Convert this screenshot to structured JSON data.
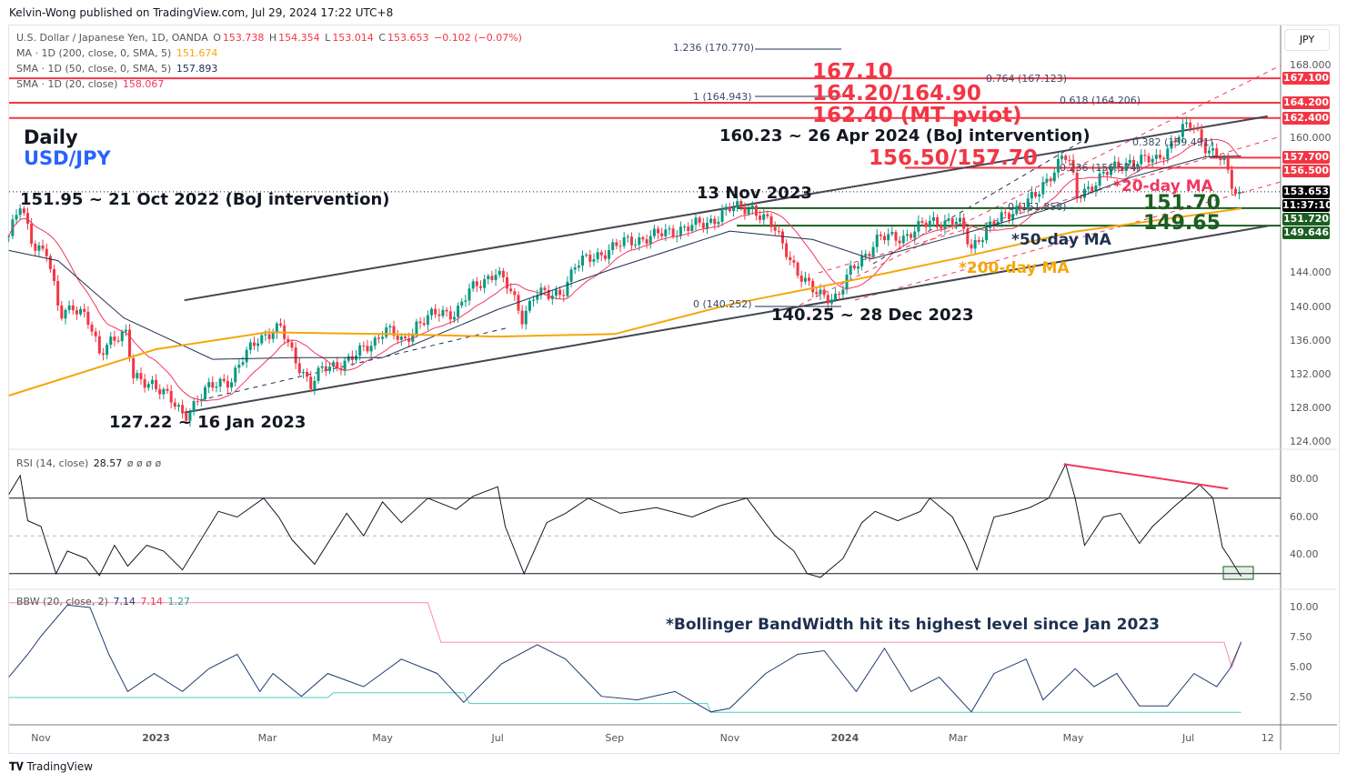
{
  "header": {
    "published": "Kelvin-Wong published on TradingView.com, Jul 29, 2024 17:22 UTC+8"
  },
  "legend": {
    "symbol": "U.S. Dollar / Japanese Yen, 1D, OANDA",
    "open_label": "O",
    "open": "153.738",
    "high_label": "H",
    "high": "154.354",
    "low_label": "L",
    "low": "153.014",
    "close_label": "C",
    "close": "153.653",
    "change": "−0.102 (−0.07%)",
    "ma200_label": "MA · 1D (200, close, 0, SMA, 5)",
    "ma200_value": "151.674",
    "sma50_label": "SMA · 1D (50, close, 0, SMA, 5)",
    "sma50_value": "157.893",
    "sma20_label": "SMA · 1D (20, close)",
    "sma20_value": "158.067",
    "rsi_label": "RSI (14, close)",
    "rsi_value": "28.57",
    "rsi_extra": "ø ø ø ø",
    "bbw_label": "BBW (20, close, 2)",
    "bbw_value1": "7.14",
    "bbw_value2": "7.14",
    "bbw_value3": "1.27"
  },
  "colors": {
    "up": "#089981",
    "down": "#f23645",
    "ma20": "#f23660",
    "ma50": "#1e3050",
    "ma200": "#f5a70a",
    "resistance": "#f23645",
    "support": "#1b5e20",
    "bbw": "#1e3a6e",
    "bbw_high": "#f48fb1",
    "bbw_low": "#4dd0c0"
  },
  "annotations": {
    "daily": "Daily",
    "pair": "USD/JPY",
    "oct2022": "151.95 ~ 21 Oct 2022 (BoJ intervention)",
    "jan2023": "127.22 ~ 16 Jan 2023",
    "nov2023": "13 Nov 2023",
    "apr2024": "160.23 ~ 26 Apr 2024 (BoJ intervention)",
    "dec2023": "140.25 ~ 28 Dec 2023",
    "r1": "167.10",
    "r2": "164.20/164.90",
    "r3": "162.40 (MT pviot)",
    "r4": "156.50/157.70",
    "ma20": "*20-day MA",
    "s1": "151.70",
    "s2": "149.65",
    "ma50": "*50-day MA",
    "ma200": "*200-day MA",
    "bbw_note": "*Bollinger BandWidth hit its highest level since Jan 2023"
  },
  "fib_labels": {
    "f1236": "1.236 (170.770)",
    "f1": "1 (164.943)",
    "f0764": "0.764 (167.123)",
    "f0618": "0.618 (164.206)",
    "f0382": "0.382 (159.491)",
    "f0236": "0.236 (156.574)",
    "f0a": "0 (151.858)",
    "f0b": "0 (140.252)"
  },
  "price_axis": {
    "currency": "JPY",
    "ticks": [
      {
        "v": 168,
        "label": "168.000"
      },
      {
        "v": 160,
        "label": "160.000"
      },
      {
        "v": 144,
        "label": "144.000"
      },
      {
        "v": 140,
        "label": "140.000"
      },
      {
        "v": 136,
        "label": "136.000"
      },
      {
        "v": 132,
        "label": "132.000"
      },
      {
        "v": 128,
        "label": "128.000"
      },
      {
        "v": 124,
        "label": "124.000"
      }
    ],
    "badges": [
      {
        "v": 167.1,
        "text": "167.100",
        "color": "#f23645"
      },
      {
        "v": 164.2,
        "text": "164.200",
        "color": "#f23645"
      },
      {
        "v": 162.4,
        "text": "162.400",
        "color": "#f23645"
      },
      {
        "v": 157.7,
        "text": "157.700",
        "color": "#f23645"
      },
      {
        "v": 156.5,
        "text": "156.500",
        "color": "#f23645"
      },
      {
        "v": 153.653,
        "text": "153.653",
        "color": "#000000"
      },
      {
        "v": 152.2,
        "text": "11:37:10",
        "color": "#000000"
      },
      {
        "v": 151.72,
        "text": "151.720",
        "color": "#1b5e20"
      },
      {
        "v": 149.646,
        "text": "149.646",
        "color": "#1b5e20"
      }
    ]
  },
  "rsi_axis": [
    {
      "v": 80,
      "label": "80.00"
    },
    {
      "v": 60,
      "label": "60.00"
    },
    {
      "v": 40,
      "label": "40.00"
    }
  ],
  "bbw_axis": [
    {
      "v": 10,
      "label": "10.00"
    },
    {
      "v": 7.5,
      "label": "7.50"
    },
    {
      "v": 5,
      "label": "5.00"
    },
    {
      "v": 2.5,
      "label": "2.50"
    }
  ],
  "time_axis": [
    {
      "d": "2022-11-01",
      "label": "Nov"
    },
    {
      "d": "2023-01-01",
      "label": "2023"
    },
    {
      "d": "2023-03-01",
      "label": "Mar"
    },
    {
      "d": "2023-05-01",
      "label": "May"
    },
    {
      "d": "2023-07-01",
      "label": "Jul"
    },
    {
      "d": "2023-09-01",
      "label": "Sep"
    },
    {
      "d": "2023-11-01",
      "label": "Nov"
    },
    {
      "d": "2024-01-01",
      "label": "2024"
    },
    {
      "d": "2024-03-01",
      "label": "Mar"
    },
    {
      "d": "2024-05-01",
      "label": "May"
    },
    {
      "d": "2024-07-01",
      "label": "Jul"
    },
    {
      "d": "2024-08-12",
      "label": "12"
    }
  ],
  "footer": {
    "brand": "TradingView"
  },
  "chart_data": {
    "type": "candlestick",
    "title": "U.S. Dollar / Japanese Yen, 1D, OANDA",
    "ylim": [
      124,
      170
    ],
    "xlim": [
      "2022-10-15",
      "2024-08-12"
    ],
    "closes": [
      [
        "2022-10-15",
        148.4
      ],
      [
        "2022-10-21",
        151.9
      ],
      [
        "2022-10-28",
        147.5
      ],
      [
        "2022-11-04",
        146.6
      ],
      [
        "2022-11-11",
        138.8
      ],
      [
        "2022-11-18",
        140.3
      ],
      [
        "2022-11-25",
        138.9
      ],
      [
        "2022-12-02",
        134.3
      ],
      [
        "2022-12-09",
        136.6
      ],
      [
        "2022-12-16",
        136.7
      ],
      [
        "2022-12-20",
        131.5
      ],
      [
        "2022-12-30",
        131.1
      ],
      [
        "2023-01-16",
        127.2
      ],
      [
        "2023-01-27",
        129.9
      ],
      [
        "2023-02-03",
        131.2
      ],
      [
        "2023-02-10",
        131.4
      ],
      [
        "2023-02-17",
        134.1
      ],
      [
        "2023-02-24",
        136.4
      ],
      [
        "2023-03-08",
        137.4
      ],
      [
        "2023-03-15",
        134.2
      ],
      [
        "2023-03-24",
        130.7
      ],
      [
        "2023-03-31",
        132.8
      ],
      [
        "2023-04-14",
        133.7
      ],
      [
        "2023-04-28",
        136.3
      ],
      [
        "2023-05-02",
        137.5
      ],
      [
        "2023-05-12",
        135.7
      ],
      [
        "2023-05-19",
        138.0
      ],
      [
        "2023-05-31",
        139.3
      ],
      [
        "2023-06-09",
        139.4
      ],
      [
        "2023-06-16",
        141.8
      ],
      [
        "2023-06-30",
        144.3
      ],
      [
        "2023-07-07",
        142.1
      ],
      [
        "2023-07-14",
        138.8
      ],
      [
        "2023-07-21",
        141.8
      ],
      [
        "2023-07-28",
        141.2
      ],
      [
        "2023-08-04",
        141.8
      ],
      [
        "2023-08-11",
        144.9
      ],
      [
        "2023-08-25",
        146.4
      ],
      [
        "2023-09-08",
        147.8
      ],
      [
        "2023-09-22",
        148.4
      ],
      [
        "2023-10-06",
        149.3
      ],
      [
        "2023-10-20",
        149.9
      ],
      [
        "2023-10-31",
        151.6
      ],
      [
        "2023-11-13",
        151.8
      ],
      [
        "2023-11-24",
        149.4
      ],
      [
        "2023-12-01",
        146.8
      ],
      [
        "2023-12-07",
        144.0
      ],
      [
        "2023-12-14",
        142.0
      ],
      [
        "2023-12-28",
        141.0
      ],
      [
        "2024-01-05",
        144.6
      ],
      [
        "2024-01-19",
        148.1
      ],
      [
        "2024-02-02",
        148.4
      ],
      [
        "2024-02-16",
        150.2
      ],
      [
        "2024-03-01",
        150.1
      ],
      [
        "2024-03-08",
        147.1
      ],
      [
        "2024-03-15",
        149.0
      ],
      [
        "2024-03-29",
        151.3
      ],
      [
        "2024-04-12",
        153.2
      ],
      [
        "2024-04-26",
        158.3
      ],
      [
        "2024-04-29",
        157.0
      ],
      [
        "2024-05-03",
        153.0
      ],
      [
        "2024-05-17",
        155.7
      ],
      [
        "2024-05-31",
        157.3
      ],
      [
        "2024-06-14",
        157.4
      ],
      [
        "2024-06-28",
        160.9
      ],
      [
        "2024-07-03",
        161.7
      ],
      [
        "2024-07-11",
        158.8
      ],
      [
        "2024-07-19",
        157.4
      ],
      [
        "2024-07-25",
        153.9
      ],
      [
        "2024-07-29",
        153.65
      ]
    ],
    "ma50": [
      [
        "2022-10-15",
        146.7
      ],
      [
        "2022-11-10",
        145.5
      ],
      [
        "2022-12-15",
        138.7
      ],
      [
        "2023-01-31",
        133.8
      ],
      [
        "2023-03-15",
        134.0
      ],
      [
        "2023-05-01",
        134.0
      ],
      [
        "2023-07-01",
        139.7
      ],
      [
        "2023-09-01",
        144.6
      ],
      [
        "2023-11-01",
        149.0
      ],
      [
        "2023-12-15",
        148.0
      ],
      [
        "2024-01-15",
        145.7
      ],
      [
        "2024-03-01",
        148.5
      ],
      [
        "2024-04-15",
        151.4
      ],
      [
        "2024-06-01",
        155.4
      ],
      [
        "2024-07-10",
        157.8
      ],
      [
        "2024-07-29",
        157.9
      ]
    ],
    "ma200": [
      [
        "2022-10-15",
        129.5
      ],
      [
        "2023-01-01",
        135.0
      ],
      [
        "2023-03-01",
        137.0
      ],
      [
        "2023-05-01",
        136.8
      ],
      [
        "2023-07-01",
        136.5
      ],
      [
        "2023-09-01",
        136.8
      ],
      [
        "2023-11-01",
        140.3
      ],
      [
        "2024-01-01",
        143.0
      ],
      [
        "2024-03-01",
        145.8
      ],
      [
        "2024-05-01",
        148.9
      ],
      [
        "2024-07-29",
        151.67
      ]
    ],
    "horizontal_levels": {
      "resistance": [
        167.1,
        164.2,
        162.4,
        157.7,
        156.5
      ],
      "support": [
        151.72,
        149.646
      ],
      "last": 153.653
    },
    "channel": {
      "upper": [
        [
          "2023-01-16",
          140.8
        ],
        [
          "2024-08-12",
          162.6
        ]
      ],
      "lower": [
        [
          "2023-01-16",
          127.5
        ],
        [
          "2024-08-12",
          149.6
        ]
      ]
    },
    "rsi": {
      "overbought": 70,
      "oversold": 30,
      "mid": 50,
      "values": [
        [
          "2022-10-15",
          72
        ],
        [
          "2022-10-21",
          82
        ],
        [
          "2022-10-25",
          58
        ],
        [
          "2022-11-01",
          55
        ],
        [
          "2022-11-09",
          30
        ],
        [
          "2022-11-15",
          42
        ],
        [
          "2022-11-25",
          38
        ],
        [
          "2022-12-02",
          29
        ],
        [
          "2022-12-10",
          45
        ],
        [
          "2022-12-17",
          34
        ],
        [
          "2022-12-27",
          45
        ],
        [
          "2023-01-05",
          42
        ],
        [
          "2023-01-15",
          32
        ],
        [
          "2023-02-03",
          63
        ],
        [
          "2023-02-13",
          60
        ],
        [
          "2023-02-27",
          70
        ],
        [
          "2023-03-07",
          60
        ],
        [
          "2023-03-14",
          48
        ],
        [
          "2023-03-26",
          35
        ],
        [
          "2023-04-12",
          62
        ],
        [
          "2023-04-21",
          50
        ],
        [
          "2023-05-01",
          68
        ],
        [
          "2023-05-11",
          57
        ],
        [
          "2023-05-25",
          70
        ],
        [
          "2023-06-09",
          64
        ],
        [
          "2023-06-18",
          71
        ],
        [
          "2023-07-01",
          76
        ],
        [
          "2023-07-05",
          55
        ],
        [
          "2023-07-15",
          30
        ],
        [
          "2023-07-27",
          57
        ],
        [
          "2023-08-06",
          62
        ],
        [
          "2023-08-18",
          70
        ],
        [
          "2023-09-04",
          62
        ],
        [
          "2023-09-23",
          65
        ],
        [
          "2023-10-12",
          60
        ],
        [
          "2023-10-27",
          66
        ],
        [
          "2023-11-10",
          70
        ],
        [
          "2023-11-25",
          50
        ],
        [
          "2023-12-05",
          42
        ],
        [
          "2023-12-12",
          30
        ],
        [
          "2023-12-19",
          28
        ],
        [
          "2023-12-31",
          38
        ],
        [
          "2024-01-10",
          57
        ],
        [
          "2024-01-17",
          63
        ],
        [
          "2024-01-29",
          58
        ],
        [
          "2024-02-10",
          63
        ],
        [
          "2024-02-15",
          70
        ],
        [
          "2024-02-27",
          60
        ],
        [
          "2024-03-05",
          46
        ],
        [
          "2024-03-11",
          32
        ],
        [
          "2024-03-20",
          60
        ],
        [
          "2024-03-29",
          62
        ],
        [
          "2024-04-08",
          65
        ],
        [
          "2024-04-18",
          70
        ],
        [
          "2024-04-27",
          88
        ],
        [
          "2024-05-02",
          70
        ],
        [
          "2024-05-07",
          45
        ],
        [
          "2024-05-17",
          60
        ],
        [
          "2024-05-26",
          62
        ],
        [
          "2024-06-05",
          46
        ],
        [
          "2024-06-12",
          55
        ],
        [
          "2024-06-24",
          66
        ],
        [
          "2024-07-07",
          77
        ],
        [
          "2024-07-14",
          70
        ],
        [
          "2024-07-19",
          44
        ],
        [
          "2024-07-23",
          38
        ],
        [
          "2024-07-28",
          30
        ],
        [
          "2024-07-29",
          28.57
        ]
      ],
      "divergence_line": [
        [
          "2024-04-26",
          88
        ],
        [
          "2024-07-22",
          75
        ]
      ]
    },
    "bbw": {
      "values": [
        [
          "2022-10-15",
          4.2
        ],
        [
          "2022-10-25",
          6.1
        ],
        [
          "2022-11-01",
          7.6
        ],
        [
          "2022-11-15",
          10.2
        ],
        [
          "2022-11-27",
          10.0
        ],
        [
          "2022-12-07",
          6.1
        ],
        [
          "2022-12-17",
          3.0
        ],
        [
          "2022-12-31",
          4.5
        ],
        [
          "2023-01-15",
          3.0
        ],
        [
          "2023-01-29",
          4.9
        ],
        [
          "2023-02-13",
          6.1
        ],
        [
          "2023-02-25",
          3.0
        ],
        [
          "2023-03-04",
          4.5
        ],
        [
          "2023-03-19",
          2.6
        ],
        [
          "2023-04-02",
          4.5
        ],
        [
          "2023-04-21",
          3.4
        ],
        [
          "2023-05-11",
          5.7
        ],
        [
          "2023-05-30",
          4.5
        ],
        [
          "2023-06-13",
          2.1
        ],
        [
          "2023-07-03",
          5.3
        ],
        [
          "2023-07-22",
          6.9
        ],
        [
          "2023-08-06",
          5.7
        ],
        [
          "2023-08-25",
          2.6
        ],
        [
          "2023-09-13",
          2.3
        ],
        [
          "2023-10-03",
          3.0
        ],
        [
          "2023-10-22",
          1.3
        ],
        [
          "2023-11-01",
          1.6
        ],
        [
          "2023-11-20",
          4.5
        ],
        [
          "2023-12-07",
          6.1
        ],
        [
          "2023-12-21",
          6.4
        ],
        [
          "2024-01-07",
          3.0
        ],
        [
          "2024-01-22",
          6.6
        ],
        [
          "2024-02-05",
          3.0
        ],
        [
          "2024-02-20",
          4.2
        ],
        [
          "2024-03-08",
          1.3
        ],
        [
          "2024-03-20",
          4.5
        ],
        [
          "2024-04-06",
          5.7
        ],
        [
          "2024-04-15",
          2.3
        ],
        [
          "2024-05-02",
          4.9
        ],
        [
          "2024-05-12",
          3.4
        ],
        [
          "2024-05-24",
          4.5
        ],
        [
          "2024-06-05",
          1.8
        ],
        [
          "2024-06-20",
          1.8
        ],
        [
          "2024-07-04",
          4.5
        ],
        [
          "2024-07-16",
          3.4
        ],
        [
          "2024-07-23",
          4.9
        ],
        [
          "2024-07-29",
          7.14
        ]
      ],
      "highest_expansion": [
        [
          "2022-10-15",
          10.4
        ],
        [
          "2023-05-25",
          10.4
        ],
        [
          "2023-06-01",
          7.1
        ],
        [
          "2024-07-20",
          7.1
        ],
        [
          "2024-07-24",
          5.0
        ],
        [
          "2024-07-29",
          7.14
        ]
      ],
      "lowest_contraction": [
        [
          "2022-10-15",
          2.5
        ],
        [
          "2023-04-02",
          2.5
        ],
        [
          "2023-04-05",
          2.9
        ],
        [
          "2023-06-13",
          2.9
        ],
        [
          "2023-06-16",
          2.0
        ],
        [
          "2023-10-20",
          2.0
        ],
        [
          "2023-10-22",
          1.27
        ],
        [
          "2024-07-29",
          1.27
        ]
      ]
    }
  }
}
